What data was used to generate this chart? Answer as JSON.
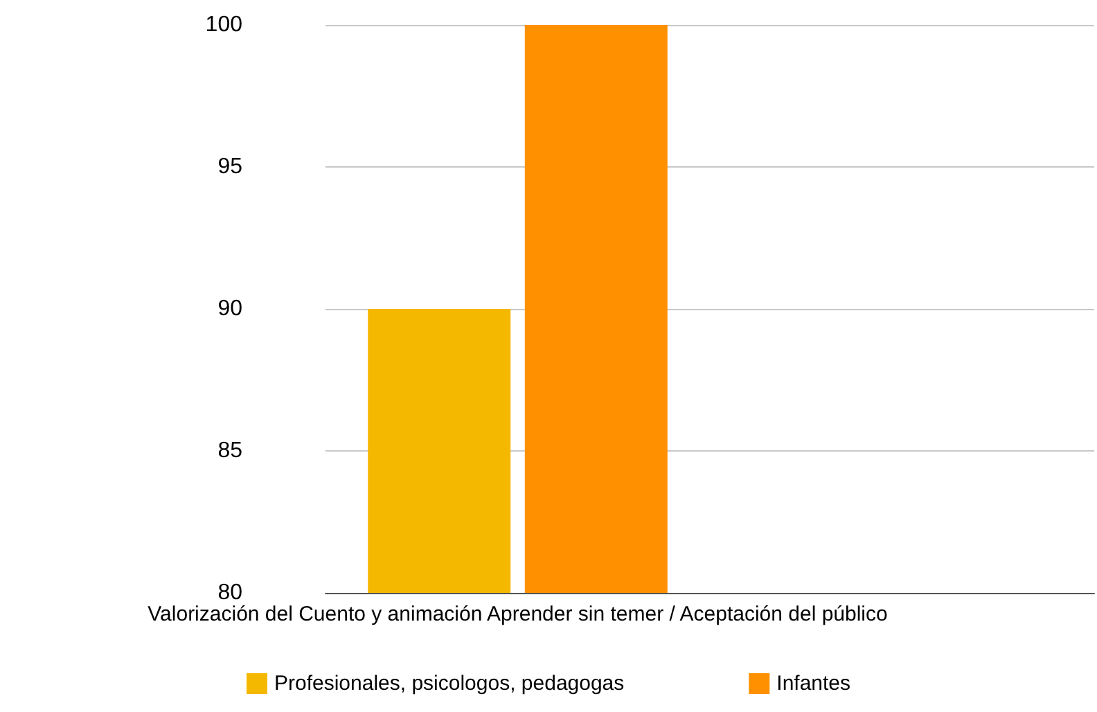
{
  "chart_data": {
    "type": "bar",
    "categories": [
      "Valorización del Cuento y animación Aprender sin temer / Aceptación del público",
      null
    ],
    "series": [
      {
        "name": "Profesionales, psicologos, pedagogas",
        "color": "#f5b800",
        "values": [
          90,
          null
        ]
      },
      {
        "name": "Infantes",
        "color": "#ff9100",
        "values": [
          100,
          null
        ]
      }
    ],
    "ylim": [
      80,
      100
    ],
    "yticks": [
      80,
      85,
      90,
      95,
      100
    ],
    "grid": "y",
    "legend": "bottom"
  }
}
